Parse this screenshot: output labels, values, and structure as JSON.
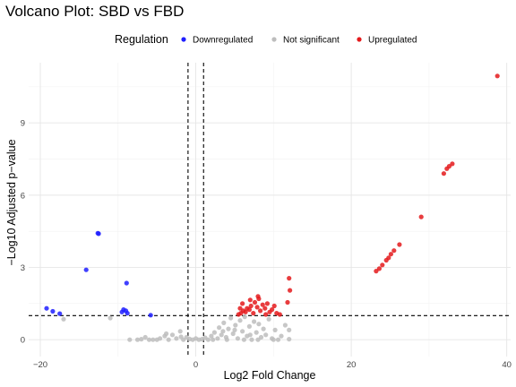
{
  "chart_data": {
    "type": "scatter",
    "title": "Volcano Plot: SBD vs FBD",
    "xlabel": "Log2 Fold Change",
    "ylabel": "−Log10 Adjusted p−value",
    "xlim": [
      -21.5,
      40.5
    ],
    "ylim": [
      -0.7,
      11.5
    ],
    "x_ticks": [
      -20,
      0,
      20,
      40
    ],
    "y_ticks": [
      0,
      3,
      6,
      9
    ],
    "grid": true,
    "legend": {
      "title": "Regulation",
      "position": "top",
      "entries": [
        "Downregulated",
        "Not significant",
        "Upregulated"
      ]
    },
    "thresholds": {
      "fold_change_lines": [
        -1,
        1
      ],
      "pvalue_line": 1
    },
    "colors": {
      "Downregulated": "#1f1fff",
      "Not significant": "#bdbdbd",
      "Upregulated": "#e41a1c"
    },
    "series": [
      {
        "name": "Downregulated",
        "points": [
          [
            -12.5,
            4.4
          ],
          [
            -14.1,
            2.9
          ],
          [
            -8.9,
            2.35
          ],
          [
            -19.2,
            1.3
          ],
          [
            -18.4,
            1.18
          ],
          [
            -17.5,
            1.08
          ],
          [
            -9.3,
            1.25
          ],
          [
            -9.0,
            1.2
          ],
          [
            -8.8,
            1.1
          ],
          [
            -9.5,
            1.15
          ],
          [
            -5.8,
            1.02
          ],
          [
            -12.6,
            4.42
          ]
        ]
      },
      {
        "name": "Not significant",
        "points": [
          [
            -17.0,
            0.85
          ],
          [
            -11.0,
            0.9
          ],
          [
            -8.5,
            0.0
          ],
          [
            -7.0,
            0.02
          ],
          [
            -6.5,
            0.1
          ],
          [
            -5.5,
            0.0
          ],
          [
            -4.6,
            0.05
          ],
          [
            -4.0,
            0.15
          ],
          [
            -3.5,
            0.0
          ],
          [
            -3.0,
            0.2
          ],
          [
            -2.5,
            0.05
          ],
          [
            -2.0,
            0.35
          ],
          [
            -1.6,
            0.0
          ],
          [
            -1.2,
            0.1
          ],
          [
            -0.8,
            0.03
          ],
          [
            -0.4,
            0.0
          ],
          [
            0.0,
            0.05
          ],
          [
            0.4,
            0.0
          ],
          [
            0.8,
            0.02
          ],
          [
            1.2,
            0.08
          ],
          [
            1.6,
            0.0
          ],
          [
            2.0,
            0.15
          ],
          [
            2.4,
            0.3
          ],
          [
            2.8,
            0.05
          ],
          [
            3.0,
            0.5
          ],
          [
            3.3,
            0.2
          ],
          [
            3.6,
            0.7
          ],
          [
            3.9,
            0.1
          ],
          [
            4.2,
            0.45
          ],
          [
            4.5,
            0.9
          ],
          [
            4.8,
            0.25
          ],
          [
            5.1,
            0.6
          ],
          [
            5.4,
            0.05
          ],
          [
            5.7,
            0.8
          ],
          [
            6.0,
            0.35
          ],
          [
            6.3,
            0.95
          ],
          [
            6.6,
            0.15
          ],
          [
            6.9,
            0.55
          ],
          [
            7.2,
            0.0
          ],
          [
            7.5,
            0.75
          ],
          [
            7.8,
            0.3
          ],
          [
            8.1,
            0.65
          ],
          [
            8.4,
            0.1
          ],
          [
            8.7,
            0.45
          ],
          [
            9.0,
            0.2
          ],
          [
            9.4,
            0.85
          ],
          [
            9.8,
            0.05
          ],
          [
            10.2,
            0.4
          ],
          [
            10.6,
            0.0
          ],
          [
            11.0,
            0.15
          ],
          [
            11.5,
            0.6
          ],
          [
            12.0,
            0.02
          ],
          [
            -6.0,
            0.0
          ],
          [
            -5.0,
            0.0
          ],
          [
            -7.5,
            0.0
          ],
          [
            2.2,
            0.0
          ],
          [
            4.0,
            0.0
          ],
          [
            6.2,
            0.0
          ],
          [
            8.0,
            0.0
          ],
          [
            10.0,
            0.0
          ],
          [
            5.0,
            0.4
          ],
          [
            7.0,
            0.2
          ],
          [
            3.5,
            0.35
          ],
          [
            -3.8,
            0.25
          ],
          [
            -1.9,
            0.12
          ],
          [
            12.0,
            0.4
          ]
        ]
      },
      {
        "name": "Upregulated",
        "points": [
          [
            38.8,
            10.95
          ],
          [
            33.0,
            7.3
          ],
          [
            32.6,
            7.2
          ],
          [
            32.3,
            7.1
          ],
          [
            31.9,
            6.9
          ],
          [
            29.0,
            5.1
          ],
          [
            26.2,
            3.95
          ],
          [
            25.5,
            3.7
          ],
          [
            25.1,
            3.55
          ],
          [
            24.8,
            3.4
          ],
          [
            24.5,
            3.3
          ],
          [
            24.0,
            3.1
          ],
          [
            23.6,
            2.95
          ],
          [
            23.2,
            2.85
          ],
          [
            12.0,
            2.55
          ],
          [
            12.1,
            2.05
          ],
          [
            11.8,
            1.55
          ],
          [
            5.5,
            1.05
          ],
          [
            5.8,
            1.1
          ],
          [
            6.1,
            1.2
          ],
          [
            6.4,
            1.15
          ],
          [
            6.6,
            1.3
          ],
          [
            6.9,
            1.25
          ],
          [
            7.1,
            1.4
          ],
          [
            7.4,
            1.1
          ],
          [
            7.6,
            1.55
          ],
          [
            7.9,
            1.35
          ],
          [
            8.1,
            1.7
          ],
          [
            8.3,
            1.2
          ],
          [
            8.6,
            1.45
          ],
          [
            8.9,
            1.3
          ],
          [
            9.2,
            1.5
          ],
          [
            9.5,
            1.15
          ],
          [
            9.8,
            1.25
          ],
          [
            10.1,
            1.4
          ],
          [
            10.4,
            1.1
          ],
          [
            10.8,
            1.05
          ],
          [
            6.0,
            1.5
          ],
          [
            7.0,
            1.65
          ],
          [
            8.0,
            1.8
          ],
          [
            5.7,
            1.3
          ],
          [
            9.0,
            1.05
          ]
        ]
      }
    ]
  }
}
